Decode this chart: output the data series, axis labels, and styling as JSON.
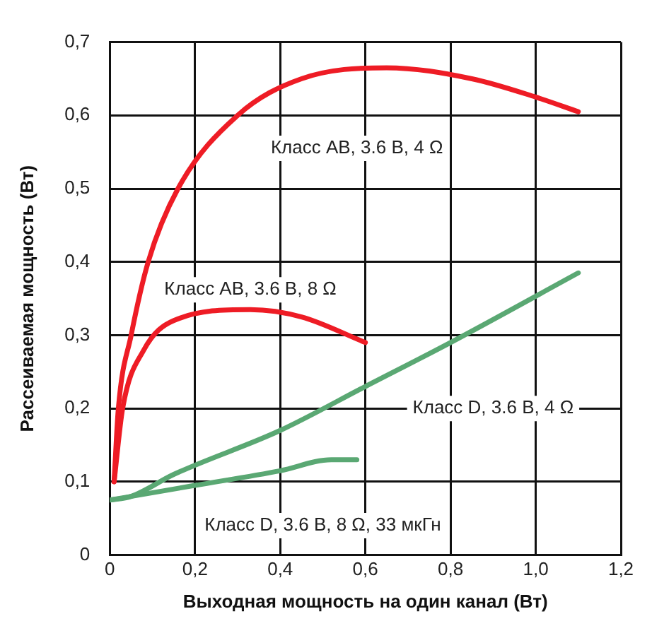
{
  "chart_data": {
    "type": "line",
    "xlabel": "Выходная мощность на один канал (Вт)",
    "ylabel": "Рассеиваемая мощность (Вт)",
    "xlim": [
      0,
      1.2
    ],
    "xticks": [
      {
        "value": 0,
        "label": "0"
      },
      {
        "value": 0.2,
        "label": "0,2"
      },
      {
        "value": 0.4,
        "label": "0,4"
      },
      {
        "value": 0.6,
        "label": "0,6"
      },
      {
        "value": 0.8,
        "label": "0,8"
      },
      {
        "value": 1.0,
        "label": "1,0"
      },
      {
        "value": 1.2,
        "label": "1,2"
      }
    ],
    "ylim": [
      0,
      0.7
    ],
    "yticks": [
      {
        "value": 0,
        "label": "0"
      },
      {
        "value": 0.1,
        "label": "0,1"
      },
      {
        "value": 0.2,
        "label": "0,2"
      },
      {
        "value": 0.3,
        "label": "0,3"
      },
      {
        "value": 0.4,
        "label": "0,4"
      },
      {
        "value": 0.5,
        "label": "0,5"
      },
      {
        "value": 0.6,
        "label": "0,6"
      },
      {
        "value": 0.7,
        "label": "0,7"
      }
    ],
    "grid": true,
    "legend": false,
    "marker": "none",
    "line_style": "solid",
    "series": [
      {
        "name": "Класс AB, 3.6 В, 4 Ω",
        "color": "#ee1c25",
        "x": [
          0.01,
          0.02,
          0.05,
          0.09,
          0.16,
          0.3,
          0.45,
          0.65,
          0.85,
          1.0,
          1.1
        ],
        "values": [
          0.1,
          0.2,
          0.3,
          0.4,
          0.5,
          0.6,
          0.65,
          0.665,
          0.65,
          0.625,
          0.605
        ]
      },
      {
        "name": "Класс AB, 3.6 В, 8 Ω",
        "color": "#ee1c25",
        "x": [
          0.01,
          0.03,
          0.08,
          0.15,
          0.33,
          0.45,
          0.6
        ],
        "values": [
          0.1,
          0.2,
          0.28,
          0.32,
          0.335,
          0.325,
          0.29
        ]
      },
      {
        "name": "Класс D, 3.6 В, 4 Ω",
        "color": "#5aa873",
        "x": [
          0,
          0.05,
          0.15,
          0.4,
          0.6,
          0.8,
          1.1
        ],
        "values": [
          0.075,
          0.08,
          0.11,
          0.17,
          0.23,
          0.29,
          0.385
        ]
      },
      {
        "name": "Класс D, 3.6 В, 8 Ω, 33 мкГн",
        "color": "#5aa873",
        "x": [
          0,
          0.05,
          0.2,
          0.4,
          0.52,
          0.58
        ],
        "values": [
          0.075,
          0.08,
          0.095,
          0.115,
          0.13,
          0.13
        ]
      }
    ]
  }
}
